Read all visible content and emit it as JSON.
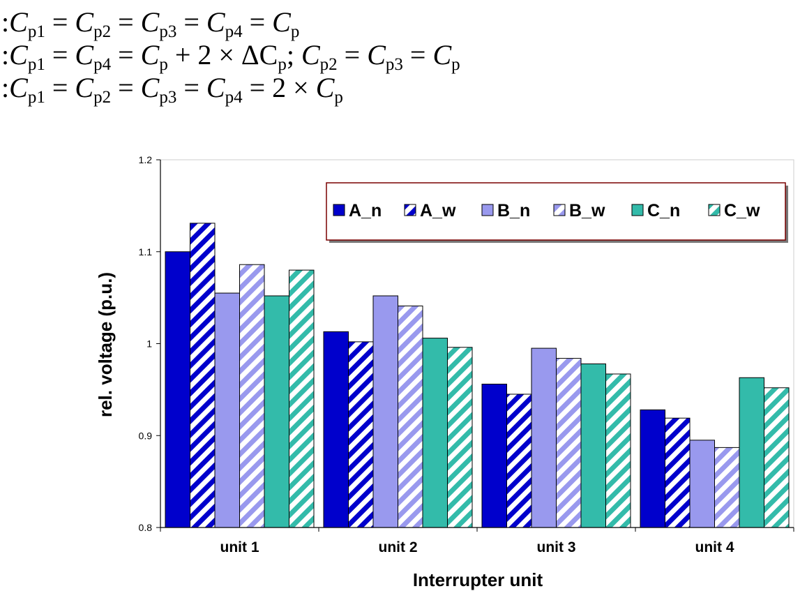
{
  "formulas": [
    {
      "prefix": ":",
      "parts": [
        [
          "C",
          "p1"
        ],
        [
          "C",
          "p2"
        ],
        [
          "C",
          "p3"
        ],
        [
          "C",
          "p4"
        ],
        [
          "C",
          "p"
        ]
      ],
      "text": ":Cp1 = Cp2 = Cp3 = Cp4 = Cp"
    },
    {
      "text": ":Cp1 = Cp4 = Cp + 2 × ΔCp; Cp2 = Cp3 = Cp"
    },
    {
      "text": ":Cp1 = Cp2 = Cp3 = Cp4 = 2 × Cp"
    }
  ],
  "chart_data": {
    "type": "bar",
    "categories": [
      "unit 1",
      "unit 2",
      "unit 3",
      "unit 4"
    ],
    "series": [
      {
        "name": "A_n",
        "values": [
          1.1,
          1.013,
          0.956,
          0.928
        ],
        "color": "#0000cc",
        "pattern": "solid"
      },
      {
        "name": "A_w",
        "values": [
          1.131,
          1.002,
          0.945,
          0.919
        ],
        "color": "#0000cc",
        "pattern": "hatched"
      },
      {
        "name": "B_n",
        "values": [
          1.055,
          1.052,
          0.995,
          0.895
        ],
        "color": "#9999ee",
        "pattern": "solid"
      },
      {
        "name": "B_w",
        "values": [
          1.086,
          1.041,
          0.984,
          0.887
        ],
        "color": "#9999ee",
        "pattern": "hatched"
      },
      {
        "name": "C_n",
        "values": [
          1.052,
          1.006,
          0.978,
          0.963
        ],
        "color": "#33bbaa",
        "pattern": "solid"
      },
      {
        "name": "C_w",
        "values": [
          1.08,
          0.996,
          0.967,
          0.952
        ],
        "color": "#33bbaa",
        "pattern": "hatched"
      }
    ],
    "ylim": [
      0.8,
      1.2
    ],
    "yticks": [
      "0.8",
      "0.9",
      "1",
      "1.1",
      "1.2"
    ],
    "ytick_values": [
      0.8,
      0.9,
      1.0,
      1.1,
      1.2
    ],
    "xlabel": "Interrupter unit",
    "ylabel": "rel. voltage (p.u.)",
    "legend_position": "top-right",
    "grid": false
  }
}
